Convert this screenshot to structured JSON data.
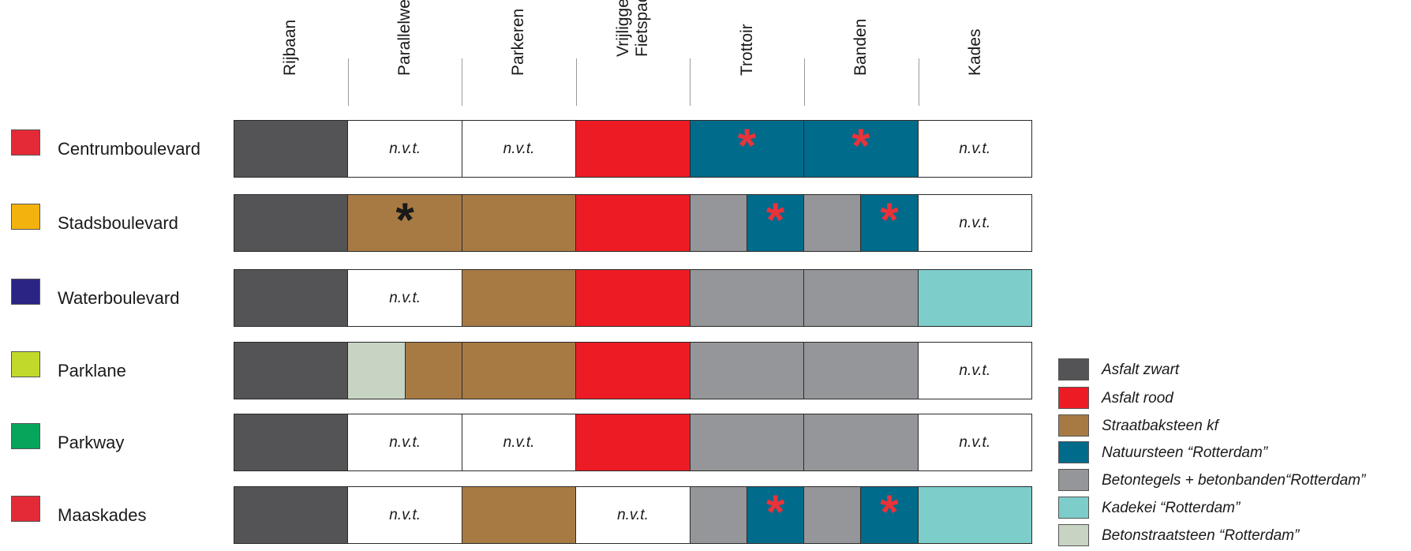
{
  "columns": [
    {
      "label": "Rijbaan"
    },
    {
      "label": "Parallelweg"
    },
    {
      "label": "Parkeren"
    },
    {
      "label": "Vrijliggend\nFietspad"
    },
    {
      "label": "Trottoir"
    },
    {
      "label": "Banden"
    },
    {
      "label": "Kades"
    }
  ],
  "nvt_text": "n.v.t.",
  "star_symbol": "*",
  "colors": {
    "asfalt_zwart": "#545456",
    "asfalt_rood": "#ed1c24",
    "straatbaksteen": "#a77a44",
    "natuursteen": "#006b8b",
    "betontegels": "#959699",
    "kadekei": "#7dcdca",
    "betonstraatsteen": "#c8d4c3",
    "white": "#ffffff",
    "star_red": "#e8333a",
    "star_black": "#1a1a1a"
  },
  "categories": [
    {
      "label": "Centrumboulevard",
      "swatch": "#e32a36",
      "cells": [
        [
          {
            "fill": "asfalt_zwart"
          }
        ],
        [
          {
            "fill": "white",
            "nvt": true
          }
        ],
        [
          {
            "fill": "white",
            "nvt": true
          }
        ],
        [
          {
            "fill": "asfalt_rood"
          }
        ],
        [
          {
            "fill": "natuursteen",
            "star": "star_red"
          }
        ],
        [
          {
            "fill": "natuursteen",
            "star": "star_red"
          }
        ],
        [
          {
            "fill": "white",
            "nvt": true
          }
        ]
      ]
    },
    {
      "label": "Stadsboulevard",
      "swatch": "#f4b20e",
      "cells": [
        [
          {
            "fill": "asfalt_zwart"
          }
        ],
        [
          {
            "fill": "straatbaksteen",
            "star": "star_black"
          }
        ],
        [
          {
            "fill": "straatbaksteen"
          }
        ],
        [
          {
            "fill": "asfalt_rood"
          }
        ],
        [
          {
            "fill": "betontegels"
          },
          {
            "fill": "natuursteen",
            "star": "star_red"
          }
        ],
        [
          {
            "fill": "betontegels"
          },
          {
            "fill": "natuursteen",
            "star": "star_red"
          }
        ],
        [
          {
            "fill": "white",
            "nvt": true
          }
        ]
      ]
    },
    {
      "label": "Waterboulevard",
      "swatch": "#2a2585",
      "cells": [
        [
          {
            "fill": "asfalt_zwart"
          }
        ],
        [
          {
            "fill": "white",
            "nvt": true
          }
        ],
        [
          {
            "fill": "straatbaksteen"
          }
        ],
        [
          {
            "fill": "asfalt_rood"
          }
        ],
        [
          {
            "fill": "betontegels"
          }
        ],
        [
          {
            "fill": "betontegels"
          }
        ],
        [
          {
            "fill": "kadekei"
          }
        ]
      ]
    },
    {
      "label": "Parklane",
      "swatch": "#c1d92a",
      "cells": [
        [
          {
            "fill": "asfalt_zwart"
          }
        ],
        [
          {
            "fill": "betonstraatsteen"
          },
          {
            "fill": "straatbaksteen"
          }
        ],
        [
          {
            "fill": "straatbaksteen"
          }
        ],
        [
          {
            "fill": "asfalt_rood"
          }
        ],
        [
          {
            "fill": "betontegels"
          }
        ],
        [
          {
            "fill": "betontegels"
          }
        ],
        [
          {
            "fill": "white",
            "nvt": true
          }
        ]
      ]
    },
    {
      "label": "Parkway",
      "swatch": "#06a55b",
      "cells": [
        [
          {
            "fill": "asfalt_zwart"
          }
        ],
        [
          {
            "fill": "white",
            "nvt": true
          }
        ],
        [
          {
            "fill": "white",
            "nvt": true
          }
        ],
        [
          {
            "fill": "asfalt_rood"
          }
        ],
        [
          {
            "fill": "betontegels"
          }
        ],
        [
          {
            "fill": "betontegels"
          }
        ],
        [
          {
            "fill": "white",
            "nvt": true
          }
        ]
      ]
    },
    {
      "label": "Maaskades",
      "swatch": "#e32a36",
      "cells": [
        [
          {
            "fill": "asfalt_zwart"
          }
        ],
        [
          {
            "fill": "white",
            "nvt": true
          }
        ],
        [
          {
            "fill": "straatbaksteen"
          }
        ],
        [
          {
            "fill": "white",
            "nvt": true
          }
        ],
        [
          {
            "fill": "betontegels"
          },
          {
            "fill": "natuursteen",
            "star": "star_red"
          }
        ],
        [
          {
            "fill": "betontegels"
          },
          {
            "fill": "natuursteen",
            "star": "star_red"
          }
        ],
        [
          {
            "fill": "kadekei"
          }
        ]
      ]
    }
  ],
  "legend": [
    {
      "label": "Asfalt zwart",
      "fill": "asfalt_zwart"
    },
    {
      "label": "Asfalt rood",
      "fill": "asfalt_rood"
    },
    {
      "label": "Straatbaksteen kf",
      "fill": "straatbaksteen"
    },
    {
      "label": "Natuursteen “Rotterdam”",
      "fill": "natuursteen"
    },
    {
      "label": "Betontegels + betonbanden“Rotterdam”",
      "fill": "betontegels"
    },
    {
      "label": "Kadekei “Rotterdam”",
      "fill": "kadekei"
    },
    {
      "label": "Betonstraatsteen “Rotterdam”",
      "fill": "betonstraatsteen"
    }
  ]
}
